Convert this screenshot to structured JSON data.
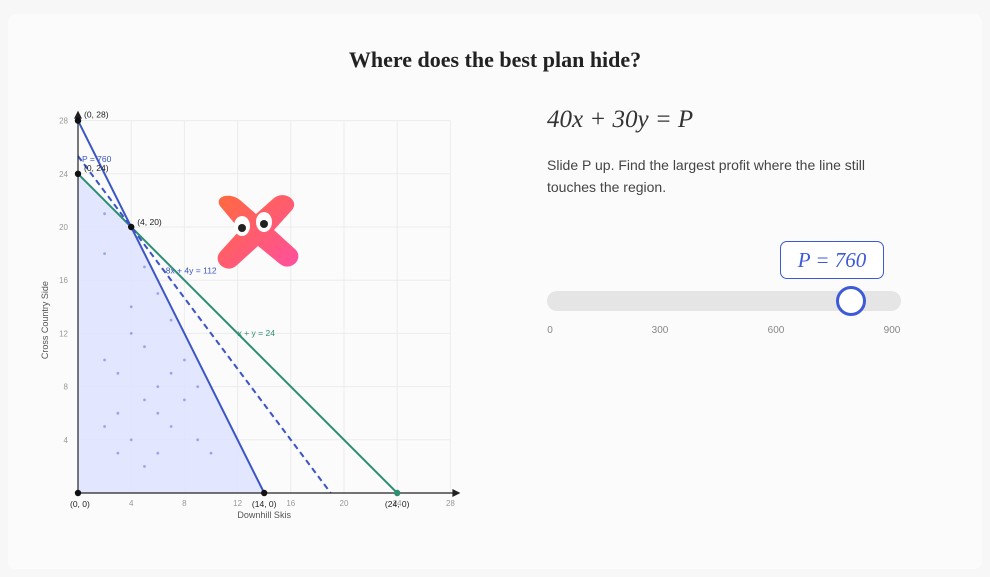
{
  "title": "Where does the best plan hide?",
  "equation": "40x + 30y = P",
  "instructions": "Slide P up. Find the largest profit where the line still touches the region.",
  "slider": {
    "label": "P = 760",
    "value": 760,
    "min": 0,
    "max": 900,
    "ticks": [
      "0",
      "300",
      "600",
      "900"
    ]
  },
  "chart_data": {
    "type": "line",
    "xlabel": "Downhill Skis",
    "ylabel": "Cross Country Side",
    "xlim": [
      0,
      28
    ],
    "ylim": [
      0,
      28
    ],
    "x_ticks": [
      "4",
      "8",
      "12",
      "16",
      "20",
      "24",
      "28"
    ],
    "y_ticks": [
      "4",
      "8",
      "12",
      "16",
      "20",
      "24",
      "28"
    ],
    "grid": true,
    "lines": [
      {
        "label": "8x + 4y = 112",
        "points": [
          [
            0,
            28
          ],
          [
            14,
            0
          ]
        ],
        "color": "#3b55c4",
        "style": "solid"
      },
      {
        "label": "x + y = 24",
        "points": [
          [
            0,
            24
          ],
          [
            24,
            0
          ]
        ],
        "color": "#2e8f74",
        "style": "solid"
      },
      {
        "label": "P = 760",
        "points": [
          [
            0,
            25.33
          ],
          [
            19,
            0
          ]
        ],
        "color": "#3b55c4",
        "style": "dashed"
      }
    ],
    "vertices": [
      {
        "label": "(0, 28)",
        "x": 0,
        "y": 28
      },
      {
        "label": "(0, 24)",
        "x": 0,
        "y": 24
      },
      {
        "label": "(4, 20)",
        "x": 4,
        "y": 20
      },
      {
        "label": "(14, 0)",
        "x": 14,
        "y": 0
      },
      {
        "label": "(24, 0)",
        "x": 24,
        "y": 0
      },
      {
        "label": "(0, 0)",
        "x": 0,
        "y": 0
      }
    ],
    "feasible_region": [
      [
        0,
        0
      ],
      [
        0,
        24
      ],
      [
        4,
        20
      ],
      [
        14,
        0
      ]
    ],
    "colors": {
      "region": "#dfe3ff",
      "line_blue": "#3b55c4",
      "line_green": "#2e8f74"
    }
  }
}
